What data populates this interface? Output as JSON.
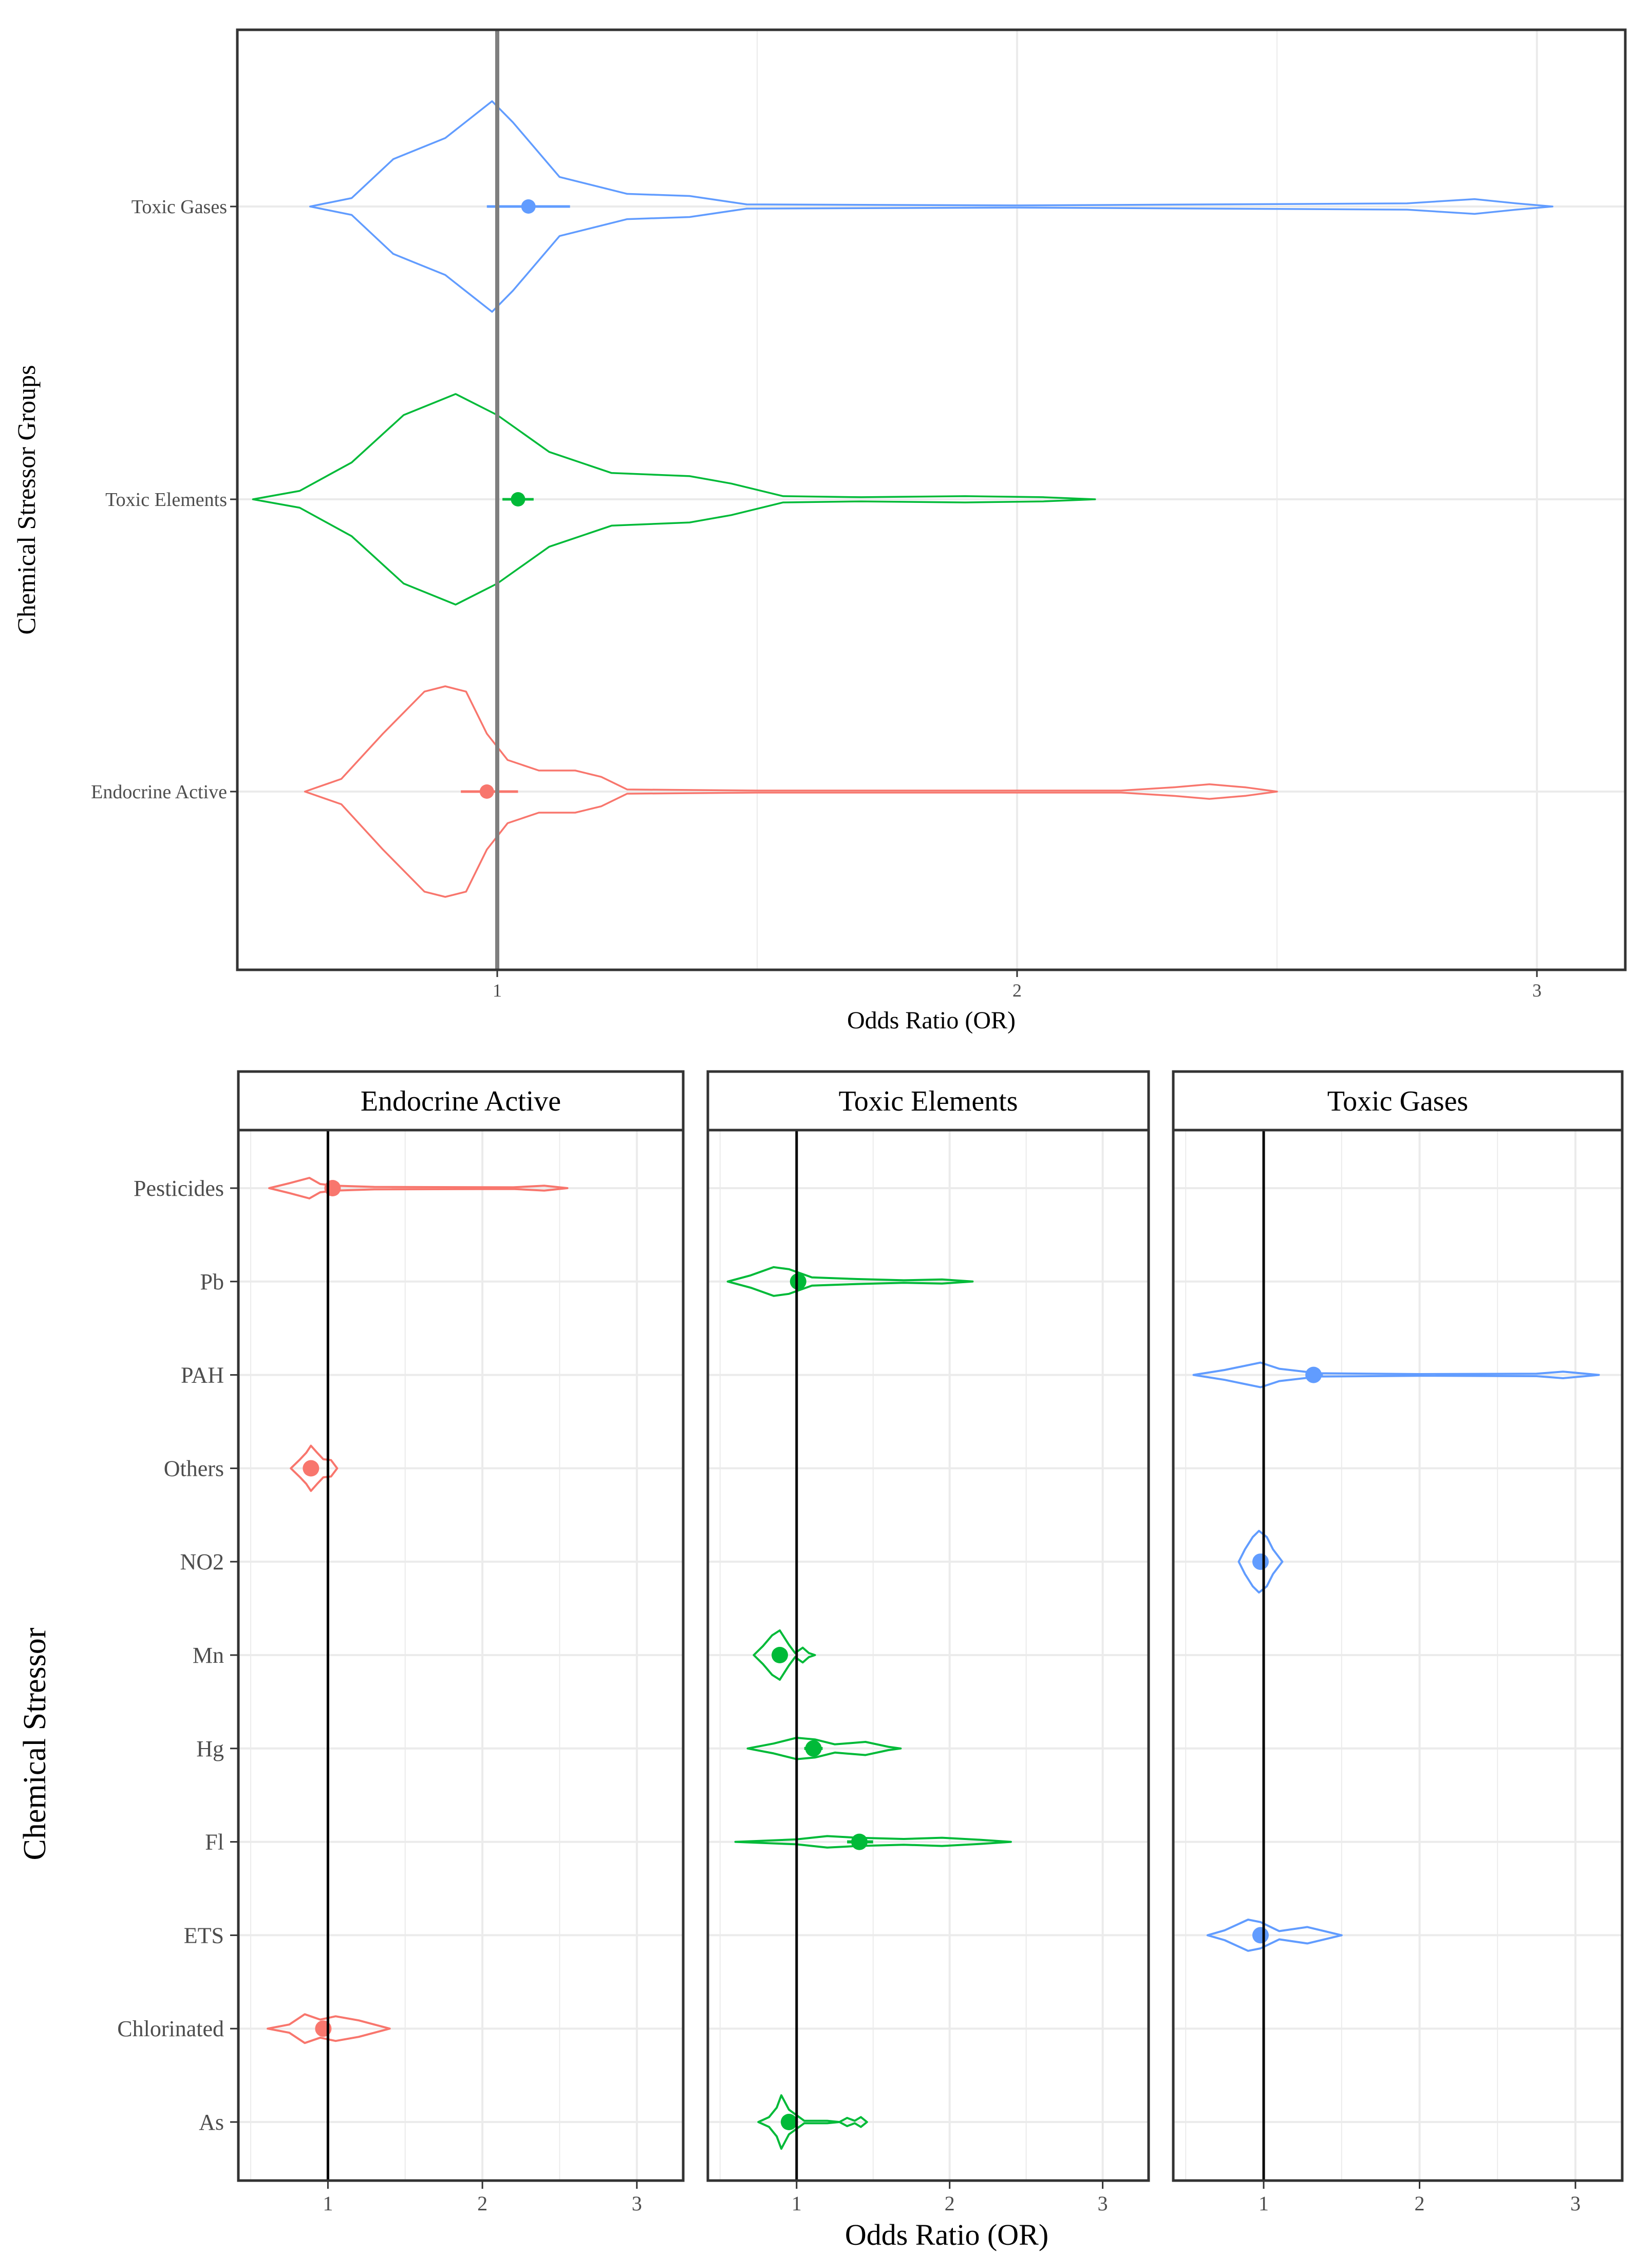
{
  "colors": {
    "endocrine": "#F8766D",
    "toxic_elements": "#00BA38",
    "toxic_gases": "#619CFF",
    "reference_line": "#000000",
    "grid": "#ebebeb",
    "panel_border": "#333333"
  },
  "chart_data": [
    {
      "type": "violin",
      "title": "",
      "xlabel": "Odds Ratio (OR)",
      "ylabel": "Chemical Stressor Groups",
      "xlim": [
        0.5,
        3.17
      ],
      "x_ticks": [
        1,
        2,
        3
      ],
      "x_tick_labels": [
        "1",
        "2",
        "3"
      ],
      "reference_line": 1,
      "grid": true,
      "categories": [
        "Endocrine Active",
        "Toxic Elements",
        "Toxic Gases"
      ],
      "series": [
        {
          "name": "Endocrine Active",
          "color_key": "endocrine",
          "estimate": 0.98,
          "ci": [
            0.93,
            1.04
          ],
          "violin": [
            [
              0.63,
              0.0
            ],
            [
              0.7,
              0.12
            ],
            [
              0.78,
              0.55
            ],
            [
              0.86,
              0.95
            ],
            [
              0.9,
              1.0
            ],
            [
              0.94,
              0.95
            ],
            [
              0.98,
              0.55
            ],
            [
              1.02,
              0.3
            ],
            [
              1.08,
              0.2
            ],
            [
              1.15,
              0.2
            ],
            [
              1.2,
              0.14
            ],
            [
              1.25,
              0.02
            ],
            [
              1.5,
              0.01
            ],
            [
              2.2,
              0.01
            ],
            [
              2.3,
              0.04
            ],
            [
              2.37,
              0.07
            ],
            [
              2.44,
              0.04
            ],
            [
              2.5,
              0.0
            ]
          ]
        },
        {
          "name": "Toxic Elements",
          "color_key": "toxic_elements",
          "estimate": 1.04,
          "ci": [
            1.01,
            1.07
          ],
          "violin": [
            [
              0.53,
              0.0
            ],
            [
              0.62,
              0.08
            ],
            [
              0.72,
              0.35
            ],
            [
              0.82,
              0.8
            ],
            [
              0.92,
              1.0
            ],
            [
              1.0,
              0.8
            ],
            [
              1.1,
              0.45
            ],
            [
              1.22,
              0.25
            ],
            [
              1.37,
              0.22
            ],
            [
              1.45,
              0.15
            ],
            [
              1.55,
              0.03
            ],
            [
              1.7,
              0.02
            ],
            [
              1.9,
              0.03
            ],
            [
              2.05,
              0.02
            ],
            [
              2.15,
              0.0
            ]
          ]
        },
        {
          "name": "Toxic Gases",
          "color_key": "toxic_gases",
          "estimate": 1.06,
          "ci": [
            0.98,
            1.14
          ],
          "violin": [
            [
              0.64,
              0.0
            ],
            [
              0.72,
              0.08
            ],
            [
              0.8,
              0.45
            ],
            [
              0.9,
              0.65
            ],
            [
              0.99,
              1.0
            ],
            [
              1.03,
              0.8
            ],
            [
              1.12,
              0.28
            ],
            [
              1.25,
              0.12
            ],
            [
              1.37,
              0.1
            ],
            [
              1.48,
              0.02
            ],
            [
              2.0,
              0.01
            ],
            [
              2.75,
              0.03
            ],
            [
              2.88,
              0.07
            ],
            [
              2.96,
              0.03
            ],
            [
              3.03,
              0.0
            ]
          ]
        }
      ]
    },
    {
      "type": "violin_facets",
      "xlabel": "Odds Ratio (OR)",
      "ylabel": "Chemical Stressor",
      "xlim": [
        0.42,
        3.3
      ],
      "x_ticks": [
        1,
        2,
        3
      ],
      "x_tick_labels": [
        "1",
        "2",
        "3"
      ],
      "reference_line": 1,
      "grid": true,
      "categories": [
        "Pesticides",
        "Pb",
        "PAH",
        "Others",
        "NO2",
        "Mn",
        "Hg",
        "Fl",
        "ETS",
        "Chlorinated",
        "As"
      ],
      "panels": [
        {
          "title": "Endocrine Active",
          "color_key": "endocrine",
          "violins": [
            {
              "category": "Pesticides",
              "estimate": 1.03,
              "ci": [
                0.99,
                1.08
              ],
              "shape": [
                [
                  0.62,
                  0.0
                ],
                [
                  0.75,
                  0.12
                ],
                [
                  0.88,
                  0.25
                ],
                [
                  0.95,
                  0.1
                ],
                [
                  1.05,
                  0.06
                ],
                [
                  1.3,
                  0.03
                ],
                [
                  2.2,
                  0.02
                ],
                [
                  2.4,
                  0.06
                ],
                [
                  2.55,
                  0.0
                ]
              ]
            },
            {
              "category": "Others",
              "estimate": 0.89,
              "ci": [
                0.85,
                0.93
              ],
              "shape": [
                [
                  0.76,
                  0.0
                ],
                [
                  0.82,
                  0.22
                ],
                [
                  0.86,
                  0.38
                ],
                [
                  0.89,
                  0.55
                ],
                [
                  0.93,
                  0.38
                ],
                [
                  0.97,
                  0.22
                ],
                [
                  1.02,
                  0.2
                ],
                [
                  1.06,
                  0.0
                ]
              ]
            },
            {
              "category": "Chlorinated",
              "estimate": 0.97,
              "ci": [
                0.93,
                1.01
              ],
              "shape": [
                [
                  0.61,
                  0.0
                ],
                [
                  0.75,
                  0.1
                ],
                [
                  0.85,
                  0.35
                ],
                [
                  0.95,
                  0.22
                ],
                [
                  1.05,
                  0.3
                ],
                [
                  1.2,
                  0.2
                ],
                [
                  1.4,
                  0.0
                ]
              ]
            }
          ]
        },
        {
          "title": "Toxic Elements",
          "color_key": "toxic_elements",
          "violins": [
            {
              "category": "Pb",
              "estimate": 1.01,
              "ci": [
                0.97,
                1.05
              ],
              "shape": [
                [
                  0.55,
                  0.0
                ],
                [
                  0.7,
                  0.15
                ],
                [
                  0.85,
                  0.35
                ],
                [
                  0.95,
                  0.3
                ],
                [
                  1.1,
                  0.1
                ],
                [
                  1.4,
                  0.06
                ],
                [
                  1.7,
                  0.03
                ],
                [
                  1.95,
                  0.05
                ],
                [
                  2.15,
                  0.0
                ]
              ]
            },
            {
              "category": "Mn",
              "estimate": 0.89,
              "ci": [
                0.85,
                0.93
              ],
              "shape": [
                [
                  0.72,
                  0.0
                ],
                [
                  0.78,
                  0.22
                ],
                [
                  0.84,
                  0.48
                ],
                [
                  0.89,
                  0.6
                ],
                [
                  0.95,
                  0.25
                ],
                [
                  0.99,
                  0.05
                ],
                [
                  1.04,
                  0.18
                ],
                [
                  1.08,
                  0.05
                ],
                [
                  1.12,
                  0.0
                ]
              ]
            },
            {
              "category": "Hg",
              "estimate": 1.11,
              "ci": [
                1.05,
                1.17
              ],
              "shape": [
                [
                  0.68,
                  0.0
                ],
                [
                  0.85,
                  0.12
                ],
                [
                  1.0,
                  0.26
                ],
                [
                  1.12,
                  0.22
                ],
                [
                  1.25,
                  0.1
                ],
                [
                  1.45,
                  0.16
                ],
                [
                  1.6,
                  0.04
                ],
                [
                  1.68,
                  0.0
                ]
              ]
            },
            {
              "category": "Fl",
              "estimate": 1.41,
              "ci": [
                1.33,
                1.5
              ],
              "shape": [
                [
                  0.6,
                  0.0
                ],
                [
                  0.8,
                  0.03
                ],
                [
                  1.0,
                  0.06
                ],
                [
                  1.2,
                  0.14
                ],
                [
                  1.4,
                  0.1
                ],
                [
                  1.7,
                  0.07
                ],
                [
                  1.95,
                  0.1
                ],
                [
                  2.2,
                  0.05
                ],
                [
                  2.4,
                  0.0
                ]
              ]
            },
            {
              "category": "As",
              "estimate": 0.95,
              "ci": [
                0.9,
                1.0
              ],
              "shape": [
                [
                  0.75,
                  0.0
                ],
                [
                  0.82,
                  0.12
                ],
                [
                  0.87,
                  0.35
                ],
                [
                  0.9,
                  0.65
                ],
                [
                  0.95,
                  0.3
                ],
                [
                  1.05,
                  0.03
                ],
                [
                  1.2,
                  0.03
                ],
                [
                  1.28,
                  0.0
                ],
                [
                  1.33,
                  0.1
                ],
                [
                  1.38,
                  0.03
                ],
                [
                  1.42,
                  0.12
                ],
                [
                  1.46,
                  0.0
                ]
              ]
            }
          ]
        },
        {
          "title": "Toxic Gases",
          "color_key": "toxic_gases",
          "violins": [
            {
              "category": "PAH",
              "estimate": 1.32,
              "ci": [
                1.27,
                1.38
              ],
              "shape": [
                [
                  0.55,
                  0.0
                ],
                [
                  0.75,
                  0.12
                ],
                [
                  0.98,
                  0.3
                ],
                [
                  1.1,
                  0.15
                ],
                [
                  1.35,
                  0.04
                ],
                [
                  2.0,
                  0.02
                ],
                [
                  2.75,
                  0.03
                ],
                [
                  2.92,
                  0.08
                ],
                [
                  3.15,
                  0.0
                ]
              ]
            },
            {
              "category": "NO2",
              "estimate": 0.98,
              "ci": [
                0.95,
                1.01
              ],
              "shape": [
                [
                  0.84,
                  0.0
                ],
                [
                  0.88,
                  0.3
                ],
                [
                  0.93,
                  0.6
                ],
                [
                  0.97,
                  0.75
                ],
                [
                  1.02,
                  0.6
                ],
                [
                  1.06,
                  0.3
                ],
                [
                  1.12,
                  0.0
                ]
              ]
            },
            {
              "category": "ETS",
              "estimate": 0.98,
              "ci": [
                0.94,
                1.02
              ],
              "shape": [
                [
                  0.64,
                  0.0
                ],
                [
                  0.75,
                  0.12
                ],
                [
                  0.9,
                  0.38
                ],
                [
                  0.98,
                  0.32
                ],
                [
                  1.1,
                  0.1
                ],
                [
                  1.28,
                  0.2
                ],
                [
                  1.5,
                  0.0
                ]
              ]
            }
          ]
        }
      ]
    }
  ]
}
